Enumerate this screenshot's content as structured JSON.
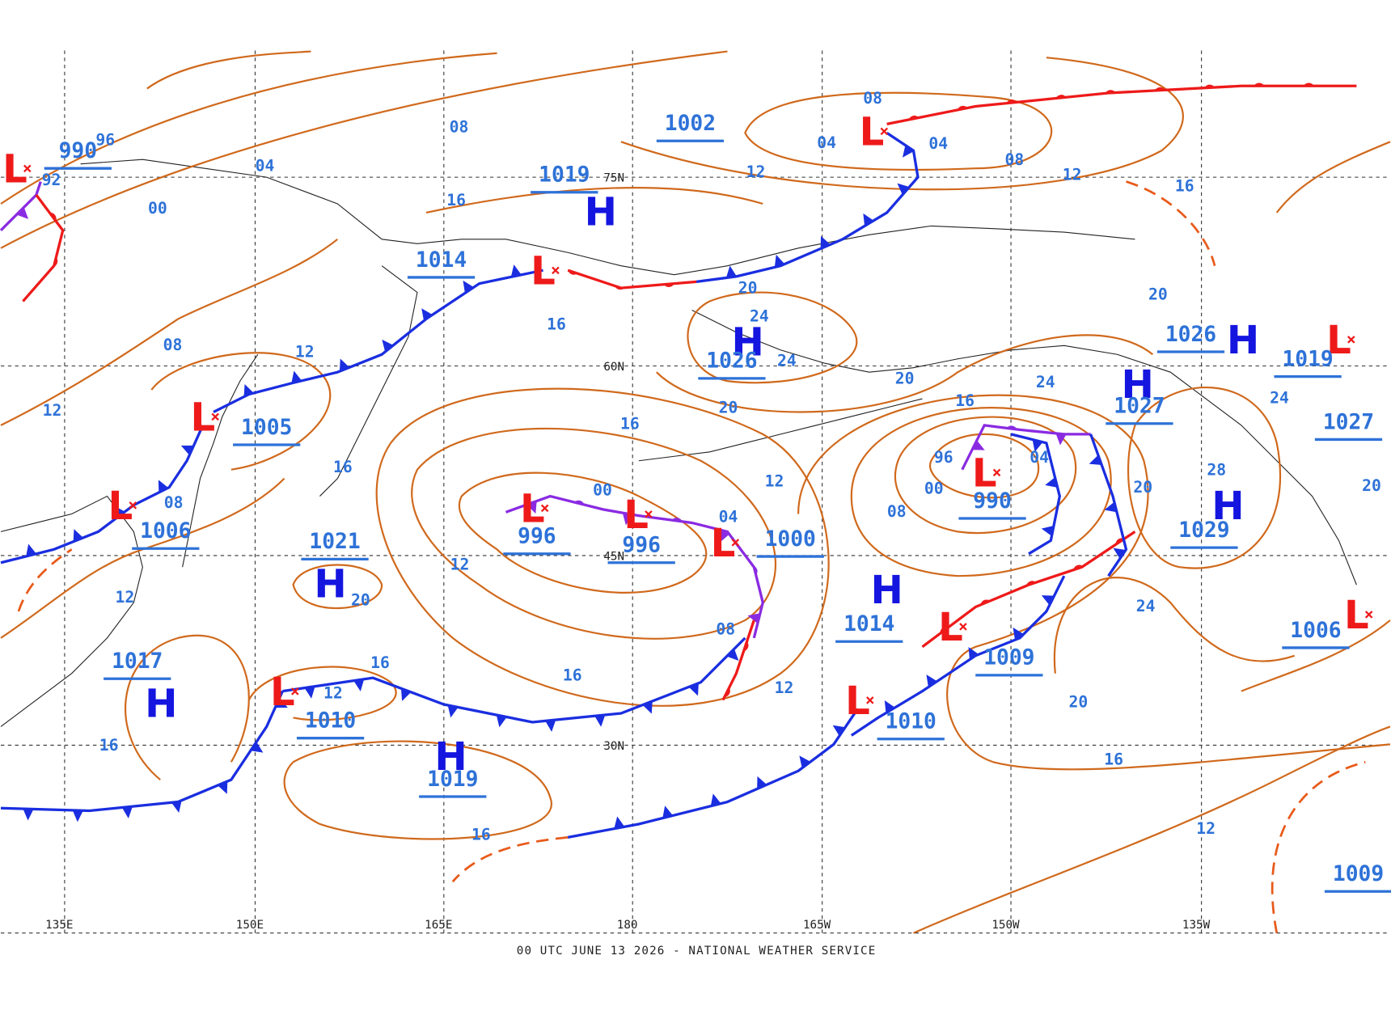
{
  "footer": "00 UTC JUNE 13 2026 - NATIONAL WEATHER SERVICE",
  "longitude_labels": [
    "135E",
    "150E",
    "165E",
    "180",
    "165W",
    "150W",
    "135W"
  ],
  "latitude_labels": [
    "75N",
    "60N",
    "45N",
    "30N"
  ],
  "high_centers": [
    "H",
    "H",
    "H",
    "H",
    "H",
    "H",
    "H",
    "H",
    "H"
  ],
  "low_centers": [
    "L",
    "L",
    "L",
    "L",
    "L",
    "L",
    "L",
    "L",
    "L",
    "L",
    "L",
    "L",
    "L",
    "L"
  ],
  "pressure_values": [
    1002,
    1019,
    1014,
    1026,
    1005,
    1021,
    1006,
    1017,
    1010,
    1019,
    1000,
    1014,
    1009,
    1010,
    1026,
    1019,
    1027,
    1027,
    1029,
    1006,
    1009,
    990,
    996,
    996,
    990
  ],
  "isobar_labels": [
    "08",
    "04",
    "00",
    "96",
    "92",
    "16",
    "12",
    "08",
    "04",
    "04",
    "08",
    "12",
    "16",
    "08",
    "12",
    "12",
    "16",
    "08",
    "12",
    "16",
    "16",
    "12",
    "20",
    "12",
    "16",
    "16",
    "16",
    "16",
    "00",
    "04",
    "08",
    "12",
    "12",
    "20",
    "24",
    "20",
    "24",
    "20",
    "16",
    "24",
    "20",
    "96",
    "00",
    "04",
    "08",
    "20",
    "28",
    "24",
    "20",
    "24",
    "20",
    "16",
    "12"
  ]
}
